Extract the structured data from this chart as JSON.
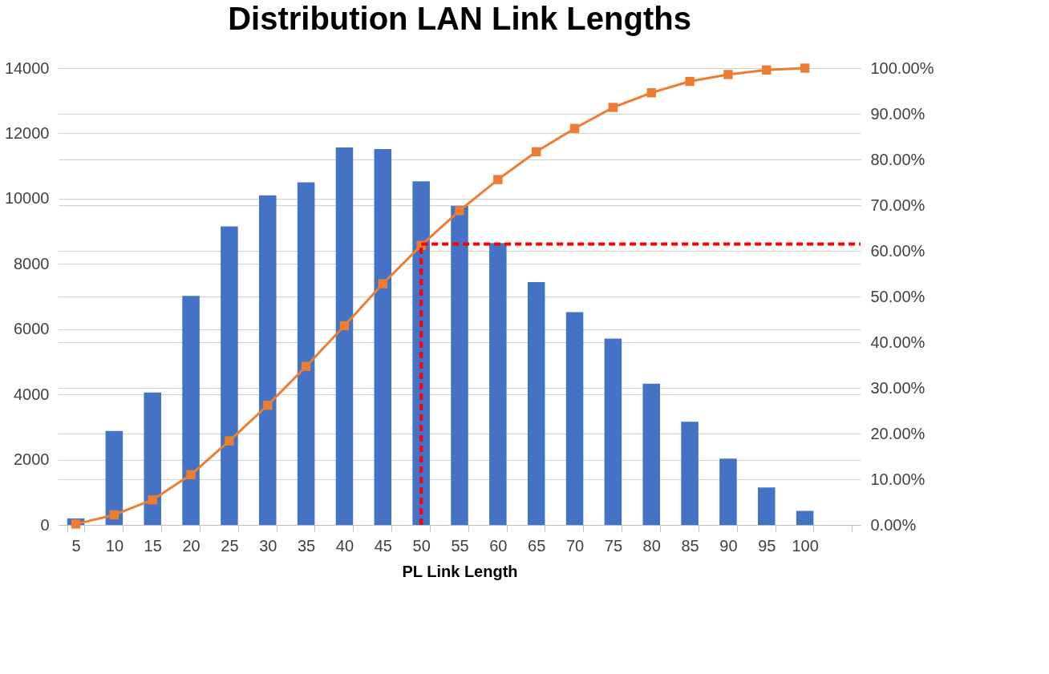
{
  "chart_data": {
    "type": "bar",
    "title": "Distribution LAN Link Lengths",
    "xlabel": "PL Link Length",
    "categories": [
      "5",
      "10",
      "15",
      "20",
      "25",
      "30",
      "35",
      "40",
      "45",
      "50",
      "55",
      "60",
      "65",
      "70",
      "75",
      "80",
      "85",
      "90",
      "95",
      "100",
      null
    ],
    "series": [
      {
        "color": "#4472c4",
        "values": [
          200,
          2880,
          4060,
          7020,
          9150,
          10100,
          10500,
          11570,
          11520,
          10530,
          9780,
          8640,
          7440,
          6520,
          5710,
          4330,
          3160,
          2030,
          1150,
          430,
          null
        ]
      },
      {
        "type": "line",
        "axis": "y2",
        "color": "#ed7d31",
        "values": [
          0.2,
          2.2,
          5.5,
          11.0,
          18.4,
          26.2,
          34.7,
          43.6,
          52.8,
          61.2,
          68.8,
          75.6,
          81.7,
          86.8,
          91.4,
          94.6,
          97.1,
          98.6,
          99.6,
          100,
          null
        ]
      }
    ],
    "ylim": [
      0,
      14000
    ],
    "yticks": [
      0,
      2000,
      4000,
      6000,
      8000,
      10000,
      12000,
      14000
    ],
    "y2lim": [
      0,
      100
    ],
    "y2ticks": [
      {
        "value": 0,
        "label": "0.00%"
      },
      {
        "value": 10,
        "label": "10.00%"
      },
      {
        "value": 20,
        "label": "20.00%"
      },
      {
        "value": 30,
        "label": "30.00%"
      },
      {
        "value": 40,
        "label": "40.00%"
      },
      {
        "value": 50,
        "label": "50.00%"
      },
      {
        "value": 60,
        "label": "60.00%"
      },
      {
        "value": 70,
        "label": "70.00%"
      },
      {
        "value": 80,
        "label": "80.00%"
      },
      {
        "value": 90,
        "label": "90.00%"
      },
      {
        "value": 100,
        "label": "100.00%"
      }
    ],
    "grid": true,
    "marker": "square",
    "line_style": "solid",
    "ref_lines": [
      {
        "axis": "x",
        "value": "50",
        "color": "#ff0000",
        "line_style": "dashed"
      },
      {
        "axis": "y2",
        "value": 61.5,
        "color": "#ff0000",
        "line_style": "dashed"
      }
    ]
  }
}
